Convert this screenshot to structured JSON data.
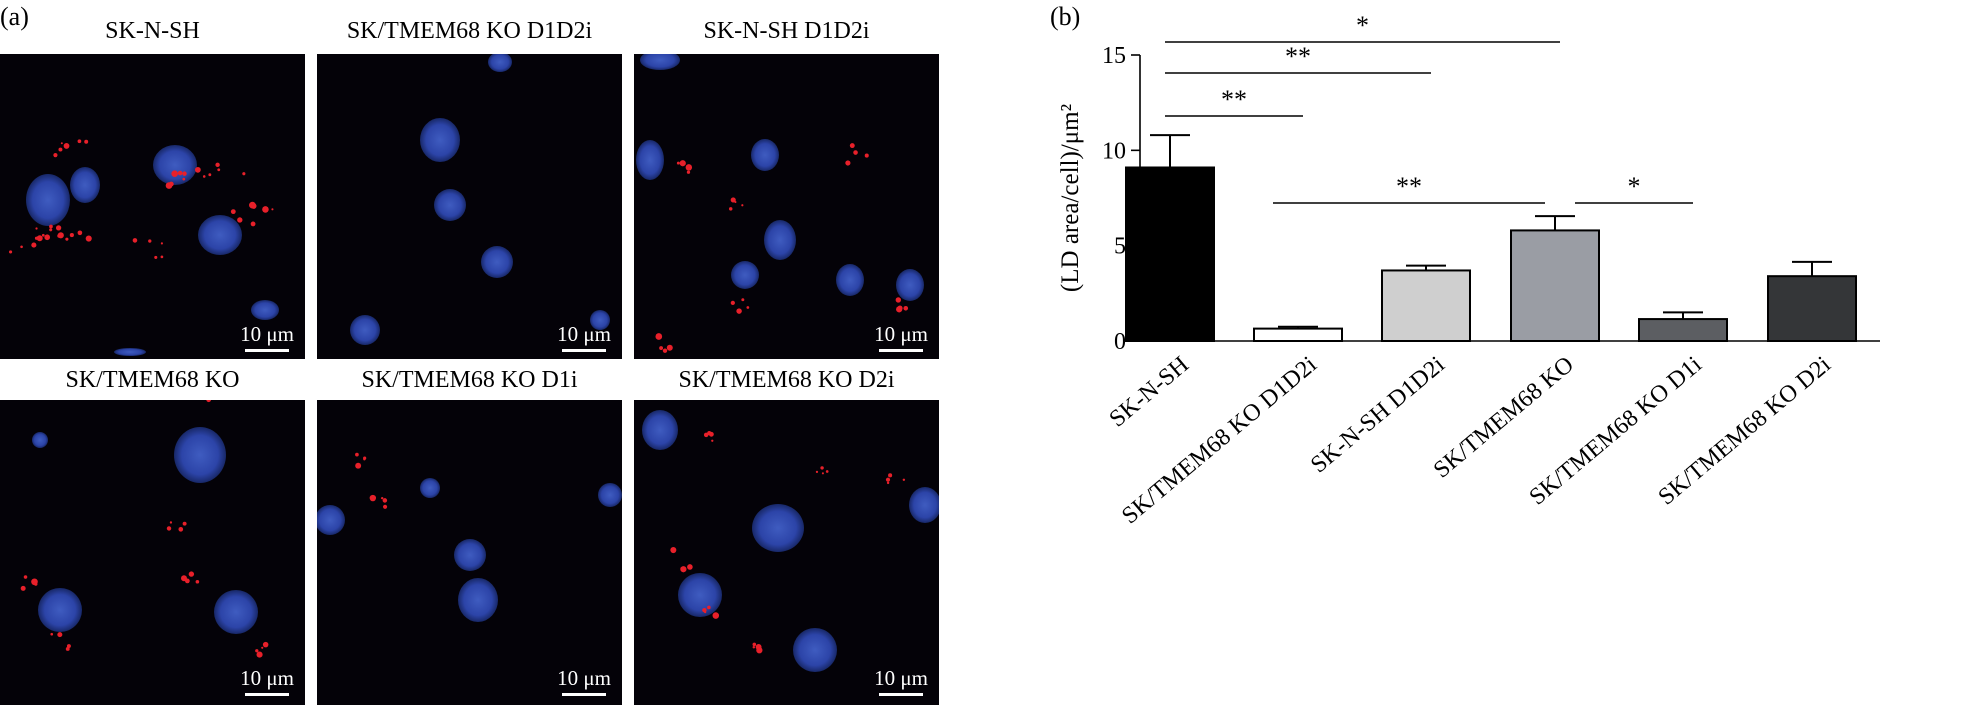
{
  "panel_a": {
    "letter": "(a)",
    "images": [
      {
        "title": "SK-N-SH",
        "scale": "10 μm"
      },
      {
        "title": "SK/TMEM68 KO D1D2i",
        "scale": "10 μm"
      },
      {
        "title": "SK-N-SH D1D2i",
        "scale": "10 μm"
      },
      {
        "title": "SK/TMEM68 KO",
        "scale": "10 μm"
      },
      {
        "title": "SK/TMEM68 KO D1i",
        "scale": "10 μm"
      },
      {
        "title": "SK/TMEM68 KO D2i",
        "scale": "10 μm"
      }
    ],
    "colors": {
      "background": "#040208",
      "nucleus": "#2c44a8",
      "lipid_droplet": "#e8202a"
    }
  },
  "panel_b": {
    "letter": "(b)"
  },
  "chart_data": {
    "type": "bar",
    "title": "",
    "xlabel": "",
    "ylabel": "(LD area/cell)/μm²",
    "ylim": [
      0,
      15
    ],
    "yticks": [
      0,
      5,
      10,
      15
    ],
    "grid": false,
    "categories": [
      "SK-N-SH",
      "SK/TMEM68 KO D1D2i",
      "SK-N-SH D1D2i",
      "SK/TMEM68 KO",
      "SK/TMEM68 KO D1i",
      "SK/TMEM68 KO D2i"
    ],
    "values": [
      9.1,
      0.65,
      3.7,
      5.8,
      1.15,
      3.4
    ],
    "errors": [
      1.7,
      0.1,
      0.25,
      0.75,
      0.35,
      0.75
    ],
    "bar_colors": [
      "#000000",
      "#ffffff",
      "#cfcfcf",
      "#9a9da4",
      "#5c5e62",
      "#343638"
    ],
    "significance": [
      {
        "from": 0,
        "to": 3,
        "label": "*"
      },
      {
        "from": 0,
        "to": 2,
        "label": "**"
      },
      {
        "from": 0,
        "to": 1,
        "label": "**"
      },
      {
        "from": 1,
        "to": 3,
        "label": "**"
      },
      {
        "from": 3,
        "to": 4,
        "label": "*"
      }
    ]
  }
}
